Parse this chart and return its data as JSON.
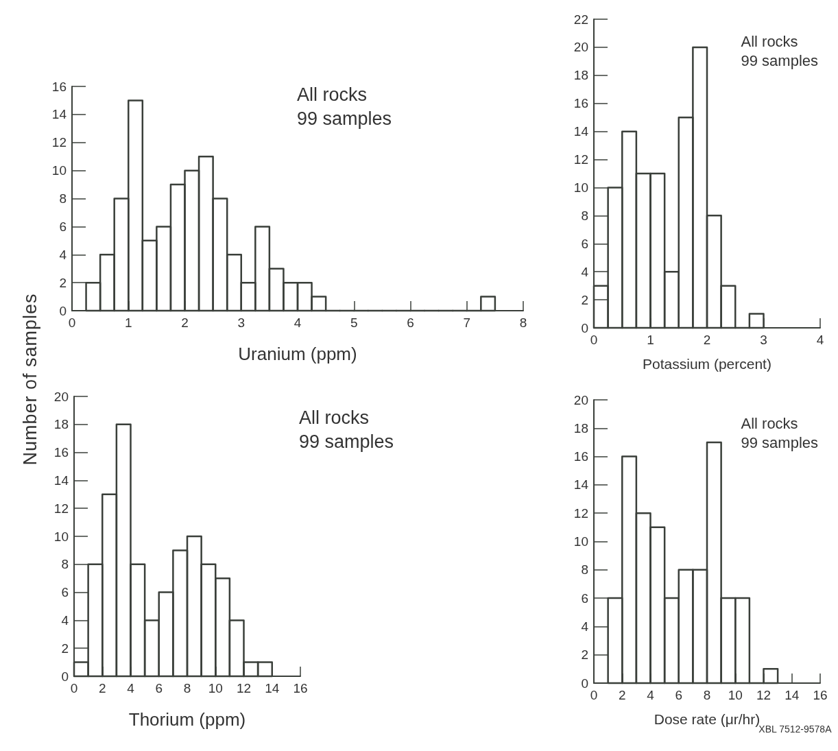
{
  "chart_data": [
    {
      "type": "histogram",
      "xlabel": "Uranium (ppm)",
      "ylabel": "Number of samples",
      "annotations": [
        "All rocks\n99 samples"
      ],
      "color": "#3a3f3a",
      "bins": [
        0.25,
        0.5,
        0.75,
        1,
        1.25,
        1.5,
        1.75,
        2,
        2.25,
        2.5,
        2.75,
        3,
        3.25,
        3.5,
        3.75,
        4,
        4.25,
        4.5,
        4.75,
        5,
        5.25,
        5.5,
        5.75,
        6,
        6.25,
        6.5,
        6.75,
        7,
        7.25,
        7.5
      ],
      "values": [
        2,
        4,
        8,
        15,
        5,
        6,
        9,
        10,
        11,
        8,
        4,
        2,
        6,
        3,
        2,
        2,
        1,
        0,
        0,
        0,
        0,
        0,
        0,
        0,
        0,
        0,
        0,
        0,
        1
      ],
      "xlim": [
        0,
        8
      ],
      "xticks": [
        0,
        1,
        2,
        3,
        4,
        5,
        6,
        7,
        8
      ],
      "ylim": [
        0,
        16
      ],
      "yticks": [
        0,
        2,
        4,
        6,
        8,
        10,
        12,
        14,
        16
      ],
      "grid": false
    },
    {
      "type": "histogram",
      "xlabel": "Potassium (percent)",
      "annotations": [
        "All rocks\n99 samples"
      ],
      "color": "#3a3f3a",
      "bins": [
        0,
        0.25,
        0.5,
        0.75,
        1,
        1.25,
        1.5,
        1.75,
        2,
        2.25,
        2.5,
        2.75,
        3
      ],
      "values": [
        3,
        10,
        14,
        11,
        11,
        4,
        15,
        20,
        8,
        3,
        0,
        1
      ],
      "xlim": [
        0,
        4
      ],
      "xticks": [
        0,
        1,
        2,
        3,
        4
      ],
      "ylim": [
        0,
        22
      ],
      "yticks": [
        0,
        2,
        4,
        6,
        8,
        10,
        12,
        14,
        16,
        18,
        20,
        22
      ],
      "grid": false
    },
    {
      "type": "histogram",
      "xlabel": "Thorium (ppm)",
      "annotations": [
        "All rocks\n99 samples"
      ],
      "color": "#3a3f3a",
      "bins": [
        0,
        1,
        2,
        3,
        4,
        5,
        6,
        7,
        8,
        9,
        10,
        11,
        12,
        13,
        14
      ],
      "values": [
        1,
        8,
        13,
        18,
        8,
        4,
        6,
        9,
        10,
        8,
        7,
        4,
        1,
        1
      ],
      "xlim": [
        0,
        16
      ],
      "xticks": [
        0,
        2,
        4,
        6,
        8,
        10,
        12,
        14,
        16
      ],
      "ylim": [
        0,
        20
      ],
      "yticks": [
        0,
        2,
        4,
        6,
        8,
        10,
        12,
        14,
        16,
        18,
        20
      ],
      "grid": false
    },
    {
      "type": "histogram",
      "xlabel": "Dose rate (μr/hr)",
      "annotations": [
        "All rocks\n99 samples",
        "XBL 7512-9578A"
      ],
      "color": "#3a3f3a",
      "bins": [
        1,
        2,
        3,
        4,
        5,
        6,
        7,
        8,
        9,
        10,
        11,
        12,
        13
      ],
      "values": [
        6,
        16,
        12,
        11,
        6,
        8,
        8,
        17,
        6,
        6,
        0,
        1
      ],
      "xlim": [
        0,
        16
      ],
      "xticks": [
        0,
        2,
        4,
        6,
        8,
        10,
        12,
        14,
        16
      ],
      "ylim": [
        0,
        20
      ],
      "yticks": [
        0,
        2,
        4,
        6,
        8,
        10,
        12,
        14,
        16,
        18,
        20
      ],
      "grid": false
    }
  ]
}
